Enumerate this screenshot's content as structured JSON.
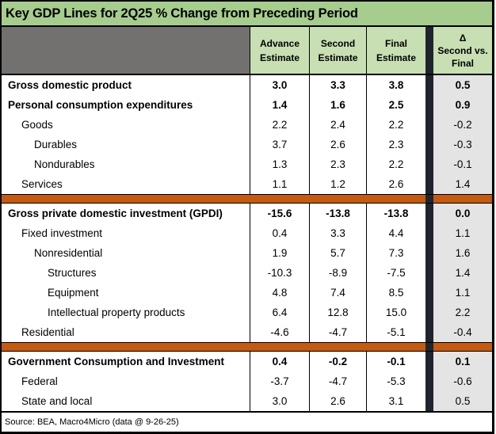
{
  "title": "Key GDP Lines for 2Q25 % Change from Preceding Period",
  "header": {
    "columns": [
      {
        "line1": "Advance",
        "line2": "Estimate"
      },
      {
        "line1": "Second",
        "line2": "Estimate"
      },
      {
        "line1": "Final",
        "line2": "Estimate"
      }
    ],
    "delta": {
      "line1": "Δ",
      "line2": "Second vs.",
      "line3": "Final"
    }
  },
  "footer": {
    "source": "Source: BEA, Macro4Micro (data @ 9-26-25)"
  },
  "colors": {
    "title_green": "#A6CD8D",
    "header_green": "#C7DFB2",
    "corner_gray": "#737070",
    "separator_dark": "#20242F",
    "divider_orange": "#C55A11",
    "delta_column_gray": "#E4E4E4",
    "border_black": "#000000"
  },
  "chart_data": {
    "type": "table",
    "title": "Key GDP Lines for 2Q25 % Change from Preceding Period",
    "columns": [
      "Advance Estimate",
      "Second Estimate",
      "Final Estimate",
      "Δ Second vs. Final"
    ],
    "rows": [
      {
        "label": "Gross domestic product",
        "indent": 0,
        "bold": true,
        "divider_after": false,
        "values": [
          "3.0",
          "3.3",
          "3.8",
          "0.5"
        ]
      },
      {
        "label": "Personal consumption expenditures",
        "indent": 0,
        "bold": true,
        "divider_after": false,
        "values": [
          "1.4",
          "1.6",
          "2.5",
          "0.9"
        ]
      },
      {
        "label": "Goods",
        "indent": 1,
        "bold": false,
        "divider_after": false,
        "values": [
          "2.2",
          "2.4",
          "2.2",
          "-0.2"
        ]
      },
      {
        "label": "Durables",
        "indent": 2,
        "bold": false,
        "divider_after": false,
        "values": [
          "3.7",
          "2.6",
          "2.3",
          "-0.3"
        ]
      },
      {
        "label": "Nondurables",
        "indent": 2,
        "bold": false,
        "divider_after": false,
        "values": [
          "1.3",
          "2.3",
          "2.2",
          "-0.1"
        ]
      },
      {
        "label": "Services",
        "indent": 1,
        "bold": false,
        "divider_after": true,
        "values": [
          "1.1",
          "1.2",
          "2.6",
          "1.4"
        ]
      },
      {
        "label": "Gross private domestic investment (GPDI)",
        "indent": 0,
        "bold": true,
        "divider_after": false,
        "values": [
          "-15.6",
          "-13.8",
          "-13.8",
          "0.0"
        ]
      },
      {
        "label": "Fixed investment",
        "indent": 1,
        "bold": false,
        "divider_after": false,
        "values": [
          "0.4",
          "3.3",
          "4.4",
          "1.1"
        ]
      },
      {
        "label": "Nonresidential",
        "indent": 2,
        "bold": false,
        "divider_after": false,
        "values": [
          "1.9",
          "5.7",
          "7.3",
          "1.6"
        ]
      },
      {
        "label": "Structures",
        "indent": 3,
        "bold": false,
        "divider_after": false,
        "values": [
          "-10.3",
          "-8.9",
          "-7.5",
          "1.4"
        ]
      },
      {
        "label": "Equipment",
        "indent": 3,
        "bold": false,
        "divider_after": false,
        "values": [
          "4.8",
          "7.4",
          "8.5",
          "1.1"
        ]
      },
      {
        "label": "Intellectual property products",
        "indent": 3,
        "bold": false,
        "divider_after": false,
        "values": [
          "6.4",
          "12.8",
          "15.0",
          "2.2"
        ]
      },
      {
        "label": "Residential",
        "indent": 1,
        "bold": false,
        "divider_after": true,
        "values": [
          "-4.6",
          "-4.7",
          "-5.1",
          "-0.4"
        ]
      },
      {
        "label": "Government Consumption and Investment",
        "indent": 0,
        "bold": true,
        "divider_after": false,
        "values": [
          "0.4",
          "-0.2",
          "-0.1",
          "0.1"
        ]
      },
      {
        "label": "Federal",
        "indent": 1,
        "bold": false,
        "divider_after": false,
        "values": [
          "-3.7",
          "-4.7",
          "-5.3",
          "-0.6"
        ]
      },
      {
        "label": "State and local",
        "indent": 1,
        "bold": false,
        "divider_after": false,
        "values": [
          "3.0",
          "2.6",
          "3.1",
          "0.5"
        ]
      }
    ]
  }
}
